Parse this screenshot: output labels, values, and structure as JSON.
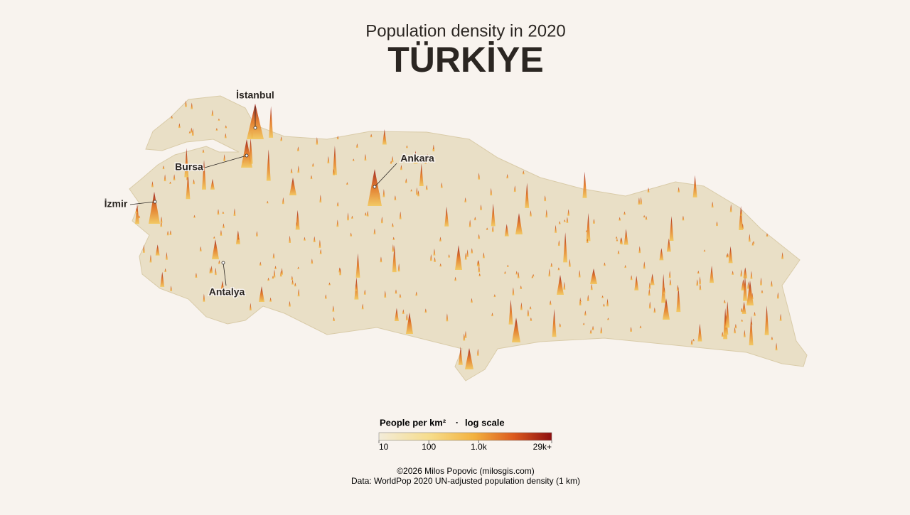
{
  "header": {
    "subtitle": "Population density in 2020",
    "title": "TÜRKİYE"
  },
  "cities": [
    {
      "label": "İstanbul"
    },
    {
      "label": "Bursa"
    },
    {
      "label": "Ankara"
    },
    {
      "label": "İzmir"
    },
    {
      "label": "Antalya"
    }
  ],
  "legend": {
    "title": "People per km²",
    "separator": "·",
    "scale": "log scale",
    "range": [
      10,
      29000
    ],
    "ticks": [
      {
        "value": 10,
        "label": "10"
      },
      {
        "value": 100,
        "label": "100"
      },
      {
        "value": 1000,
        "label": "1.0k"
      },
      {
        "value": 29000,
        "label": "29k+"
      }
    ]
  },
  "credits": {
    "author": "©2026 Milos Popovic (milosgis.com)",
    "source": "Data: WorldPop 2020 UN-adjusted population density (1 km)"
  }
}
